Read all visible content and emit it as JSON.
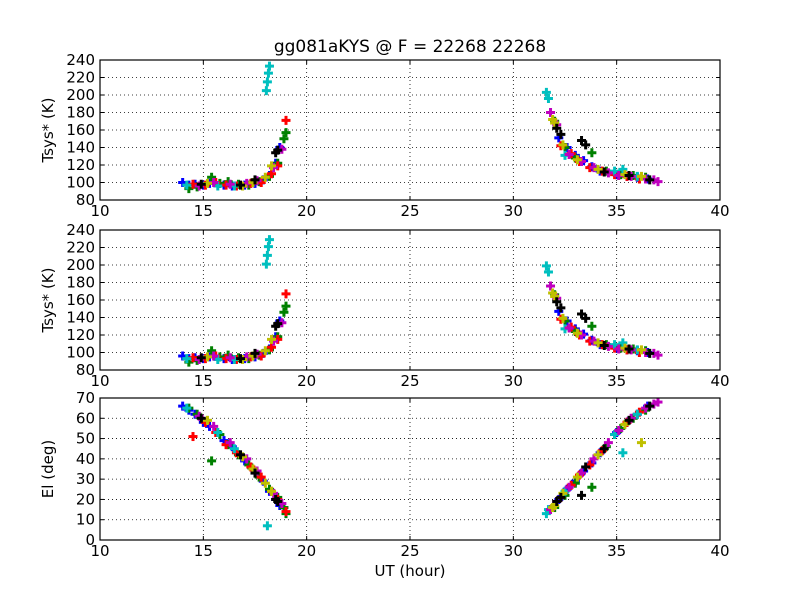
{
  "title": "gg081aKYS @ F = 22268 22268",
  "chart_data": [
    {
      "type": "scatter",
      "ylabel": "Tsys* (K)",
      "xlabel": "",
      "xlim": [
        10,
        40
      ],
      "ylim": [
        80,
        240
      ],
      "xticks": [
        "10",
        "15",
        "20",
        "25",
        "30",
        "35",
        "40"
      ],
      "yticks": [
        "80",
        "100",
        "120",
        "140",
        "160",
        "180",
        "200",
        "220",
        "240"
      ],
      "grid": true,
      "marker": "+",
      "series": [
        {
          "color": "#0000ff",
          "x": [
            14.0,
            14.3,
            14.6,
            15.0,
            15.3,
            16.0,
            16.4,
            17.0,
            17.5,
            17.9,
            18.2,
            18.5,
            18.7,
            32.2,
            32.6,
            33.0,
            33.4,
            33.8,
            34.2,
            35.0,
            35.5,
            36.0,
            36.5
          ],
          "y": [
            100,
            97,
            98,
            97,
            99,
            97,
            96,
            97,
            99,
            103,
            108,
            122,
            140,
            151,
            140,
            131,
            125,
            118,
            113,
            109,
            107,
            106,
            104
          ]
        },
        {
          "color": "#008000",
          "x": [
            14.3,
            14.7,
            15.4,
            15.8,
            16.2,
            16.7,
            17.2,
            17.7,
            18.2,
            18.6,
            18.9,
            19.0,
            32.0,
            32.5,
            33.0,
            33.8,
            34.5,
            35.2,
            35.8,
            36.4
          ],
          "y": [
            93,
            95,
            106,
            99,
            101,
            98,
            97,
            101,
            107,
            122,
            150,
            157,
            170,
            140,
            128,
            134,
            113,
            109,
            108,
            106
          ]
        },
        {
          "color": "#ff0000",
          "x": [
            14.5,
            15.1,
            15.6,
            16.1,
            16.6,
            17.3,
            17.8,
            18.3,
            18.6,
            19.0,
            32.3,
            32.8,
            33.2,
            33.7,
            34.3,
            34.9,
            35.5,
            36.1
          ],
          "y": [
            98,
            97,
            100,
            97,
            96,
            99,
            100,
            110,
            119,
            171,
            142,
            133,
            124,
            117,
            113,
            109,
            107,
            104
          ]
        },
        {
          "color": "#00bfbf",
          "x": [
            14.2,
            15.7,
            16.5,
            18.05,
            18.1,
            18.15,
            18.2,
            31.6,
            31.7,
            32.5,
            34.9,
            35.3,
            36.0
          ],
          "y": [
            97,
            96,
            96,
            205,
            215,
            225,
            233,
            203,
            196,
            131,
            113,
            115,
            107
          ]
        },
        {
          "color": "#bf00bf",
          "x": [
            14.8,
            15.5,
            16.3,
            17.1,
            17.6,
            18.4,
            18.8,
            31.8,
            32.1,
            32.7,
            33.3,
            33.9,
            34.6,
            35.1,
            35.7,
            36.4,
            36.8,
            37.0
          ],
          "y": [
            96,
            100,
            98,
            99,
            102,
            117,
            138,
            180,
            166,
            132,
            124,
            117,
            111,
            108,
            107,
            104,
            103,
            101
          ]
        },
        {
          "color": "#bfbf00",
          "x": [
            15.2,
            16.9,
            17.4,
            18.0,
            18.3,
            31.9,
            32.0,
            32.4,
            33.1,
            34.1,
            35.4,
            36.2
          ],
          "y": [
            99,
            96,
            100,
            106,
            119,
            172,
            168,
            143,
            126,
            115,
            109,
            107
          ]
        },
        {
          "color": "#000000",
          "x": [
            14.9,
            16.8,
            17.5,
            18.5,
            18.6,
            32.1,
            32.3,
            33.3,
            33.5,
            34.4,
            35.6,
            36.6
          ],
          "y": [
            98,
            97,
            103,
            134,
            137,
            162,
            155,
            148,
            143,
            112,
            108,
            103
          ]
        }
      ]
    },
    {
      "type": "scatter",
      "ylabel": "Tsys* (K)",
      "xlabel": "",
      "xlim": [
        10,
        40
      ],
      "ylim": [
        80,
        240
      ],
      "xticks": [
        "10",
        "15",
        "20",
        "25",
        "30",
        "35",
        "40"
      ],
      "yticks": [
        "80",
        "100",
        "120",
        "140",
        "160",
        "180",
        "200",
        "220",
        "240"
      ],
      "grid": true,
      "marker": "+",
      "series": [
        {
          "color": "#0000ff",
          "x": [
            14.0,
            14.3,
            14.6,
            15.0,
            15.3,
            16.0,
            16.4,
            17.0,
            17.5,
            17.9,
            18.2,
            18.5,
            18.7,
            32.2,
            32.6,
            33.0,
            33.4,
            33.8,
            34.2,
            35.0,
            35.5,
            36.0,
            36.5
          ],
          "y": [
            96,
            93,
            94,
            93,
            95,
            93,
            92,
            93,
            95,
            99,
            104,
            118,
            136,
            147,
            136,
            127,
            121,
            114,
            109,
            105,
            103,
            102,
            100
          ]
        },
        {
          "color": "#008000",
          "x": [
            14.3,
            14.7,
            15.4,
            15.8,
            16.2,
            16.7,
            17.2,
            17.7,
            18.2,
            18.6,
            18.9,
            19.0,
            32.0,
            32.5,
            33.0,
            33.8,
            34.5,
            35.2,
            35.8,
            36.4
          ],
          "y": [
            89,
            91,
            102,
            95,
            97,
            94,
            93,
            97,
            103,
            118,
            146,
            153,
            166,
            136,
            124,
            130,
            109,
            105,
            104,
            102
          ]
        },
        {
          "color": "#ff0000",
          "x": [
            14.5,
            15.1,
            15.6,
            16.1,
            16.6,
            17.3,
            17.8,
            18.3,
            18.6,
            19.0,
            32.3,
            32.8,
            33.2,
            33.7,
            34.3,
            34.9,
            35.5,
            36.1
          ],
          "y": [
            94,
            93,
            96,
            93,
            92,
            95,
            96,
            106,
            115,
            167,
            138,
            129,
            120,
            113,
            109,
            105,
            103,
            100
          ]
        },
        {
          "color": "#00bfbf",
          "x": [
            14.2,
            15.7,
            16.5,
            18.05,
            18.1,
            18.15,
            18.2,
            31.6,
            31.7,
            32.5,
            34.9,
            35.3,
            36.0
          ],
          "y": [
            93,
            92,
            92,
            201,
            211,
            221,
            229,
            199,
            192,
            127,
            109,
            111,
            103
          ]
        },
        {
          "color": "#bf00bf",
          "x": [
            14.8,
            15.5,
            16.3,
            17.1,
            17.6,
            18.4,
            18.8,
            31.8,
            32.1,
            32.7,
            33.3,
            33.9,
            34.6,
            35.1,
            35.7,
            36.4,
            36.8,
            37.0
          ],
          "y": [
            92,
            96,
            94,
            95,
            98,
            113,
            134,
            176,
            162,
            128,
            120,
            113,
            107,
            104,
            103,
            100,
            99,
            97
          ]
        },
        {
          "color": "#bfbf00",
          "x": [
            15.2,
            16.9,
            17.4,
            18.0,
            18.3,
            31.9,
            32.0,
            32.4,
            33.1,
            34.1,
            35.4,
            36.2
          ],
          "y": [
            95,
            92,
            96,
            102,
            115,
            168,
            164,
            139,
            122,
            111,
            105,
            103
          ]
        },
        {
          "color": "#000000",
          "x": [
            14.9,
            16.8,
            17.5,
            18.5,
            18.6,
            32.1,
            32.3,
            33.3,
            33.5,
            34.4,
            35.6,
            36.6
          ],
          "y": [
            94,
            93,
            99,
            130,
            133,
            158,
            151,
            144,
            139,
            108,
            104,
            99
          ]
        }
      ]
    },
    {
      "type": "scatter",
      "ylabel": "El (deg)",
      "xlabel": "UT (hour)",
      "xlim": [
        10,
        40
      ],
      "ylim": [
        0,
        70
      ],
      "xticks": [
        "10",
        "15",
        "20",
        "25",
        "30",
        "35",
        "40"
      ],
      "yticks": [
        "0",
        "10",
        "20",
        "30",
        "40",
        "50",
        "60",
        "70"
      ],
      "grid": true,
      "marker": "+",
      "series": [
        {
          "color": "#0000ff",
          "x": [
            14.0,
            14.3,
            14.6,
            15.0,
            15.3,
            16.0,
            16.4,
            17.0,
            17.5,
            17.9,
            18.2,
            18.5,
            18.7,
            32.2,
            32.6,
            33.0,
            33.4,
            33.8,
            34.2,
            35.0,
            35.5,
            36.0,
            36.5
          ],
          "y": [
            66,
            64,
            62,
            58,
            56,
            49,
            46,
            39,
            33,
            29,
            24,
            20,
            17,
            20,
            25,
            29,
            34,
            38,
            43,
            53,
            58,
            62,
            66
          ]
        },
        {
          "color": "#008000",
          "x": [
            14.3,
            14.7,
            15.4,
            15.8,
            16.2,
            16.7,
            17.2,
            17.7,
            18.2,
            18.6,
            18.9,
            19.0,
            32.0,
            32.5,
            33.0,
            33.8,
            34.5,
            35.2,
            35.8,
            36.4
          ],
          "y": [
            65,
            62,
            39,
            52,
            47,
            42,
            37,
            31,
            25,
            21,
            16,
            13,
            16,
            22,
            28,
            26,
            46,
            55,
            60,
            64
          ]
        },
        {
          "color": "#ff0000",
          "x": [
            14.5,
            15.1,
            15.6,
            16.1,
            16.6,
            17.3,
            17.8,
            18.3,
            18.6,
            19.0,
            32.3,
            32.8,
            33.2,
            33.7,
            34.3,
            34.9,
            35.5,
            36.1
          ],
          "y": [
            51,
            58,
            53,
            47,
            43,
            36,
            31,
            24,
            20,
            14,
            21,
            27,
            32,
            37,
            44,
            52,
            58,
            63
          ]
        },
        {
          "color": "#00bfbf",
          "x": [
            14.2,
            15.7,
            16.5,
            18.1,
            31.6,
            31.7,
            32.5,
            34.9,
            35.3,
            36.0
          ],
          "y": [
            65,
            53,
            45,
            7,
            13,
            15,
            24,
            52,
            43,
            62
          ]
        },
        {
          "color": "#bf00bf",
          "x": [
            14.8,
            15.5,
            16.3,
            17.1,
            17.6,
            18.4,
            18.8,
            31.8,
            32.1,
            32.7,
            33.3,
            33.9,
            34.6,
            35.1,
            35.7,
            36.4,
            36.8,
            37.0
          ],
          "y": [
            61,
            56,
            48,
            40,
            34,
            23,
            18,
            15,
            19,
            26,
            33,
            40,
            48,
            54,
            60,
            65,
            67,
            68
          ]
        },
        {
          "color": "#bfbf00",
          "x": [
            15.2,
            16.9,
            17.4,
            18.0,
            18.3,
            31.9,
            32.0,
            32.4,
            33.1,
            34.1,
            35.4,
            36.2
          ],
          "y": [
            59,
            41,
            35,
            28,
            24,
            16,
            17,
            23,
            31,
            42,
            57,
            48
          ]
        },
        {
          "color": "#000000",
          "x": [
            14.9,
            16.8,
            17.5,
            18.5,
            18.6,
            32.1,
            32.3,
            33.3,
            33.5,
            34.4,
            35.6,
            36.6
          ],
          "y": [
            60,
            42,
            33,
            20,
            19,
            19,
            21,
            22,
            36,
            45,
            59,
            66
          ]
        }
      ]
    }
  ]
}
